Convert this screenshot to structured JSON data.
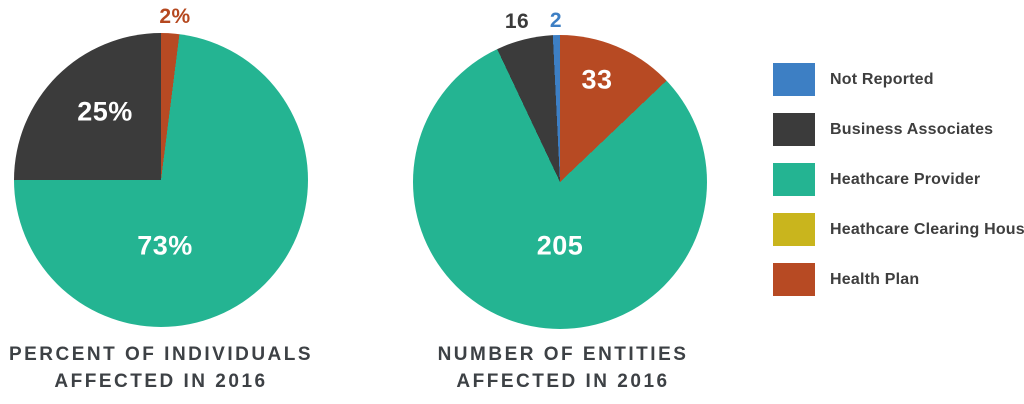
{
  "page": {
    "background": "#ffffff"
  },
  "colors": {
    "not_reported": "#3d7fc4",
    "business_associates": "#3b3b3b",
    "healthcare_provider": "#24b492",
    "healthcare_clearing_house": "#c9b51d",
    "health_plan": "#b74a23",
    "title_text": "#3d4145",
    "legend_text": "#3e3e3e",
    "inside_label_text": "#ffffff"
  },
  "legend": {
    "items": [
      {
        "label": "Not Reported",
        "color": "#3d7fc4"
      },
      {
        "label": "Business Associates",
        "color": "#3b3b3b"
      },
      {
        "label": "Heathcare Provider",
        "color": "#24b492"
      },
      {
        "label": "Heathcare Clearing House",
        "color": "#c9b51d"
      },
      {
        "label": "Health Plan",
        "color": "#b74a23"
      }
    ]
  },
  "chart_data": [
    {
      "type": "pie",
      "title": "PERCENT OF INDIVIDUALS AFFECTED IN 2016",
      "title_lines": [
        "PERCENT OF INDIVIDUALS",
        "AFFECTED IN 2016"
      ],
      "unit": "percent",
      "total": 100,
      "start_angle_deg": 0,
      "direction": "clockwise",
      "legend_position": "right",
      "slices": [
        {
          "name": "Health Plan",
          "value": 2,
          "display": "2%",
          "color": "#b74a23",
          "label_color": "#b5481f",
          "label_position": "outside-top"
        },
        {
          "name": "Heathcare Provider",
          "value": 73,
          "display": "73%",
          "color": "#24b492",
          "label_color": "#ffffff",
          "label_position": "inside"
        },
        {
          "name": "Business Associates",
          "value": 25,
          "display": "25%",
          "color": "#3b3b3b",
          "label_color": "#ffffff",
          "label_position": "inside"
        }
      ]
    },
    {
      "type": "pie",
      "title": "NUMBER OF ENTITIES AFFECTED IN 2016",
      "title_lines": [
        "NUMBER OF ENTITIES",
        "AFFECTED IN 2016"
      ],
      "unit": "count",
      "total": 256,
      "start_angle_deg": 0,
      "direction": "clockwise",
      "legend_position": "right",
      "slices": [
        {
          "name": "Health Plan",
          "value": 33,
          "display": "33",
          "color": "#b74a23",
          "label_color": "#ffffff",
          "label_position": "inside"
        },
        {
          "name": "Heathcare Provider",
          "value": 205,
          "display": "205",
          "color": "#24b492",
          "label_color": "#ffffff",
          "label_position": "inside"
        },
        {
          "name": "Business Associates",
          "value": 16,
          "display": "16",
          "color": "#3b3b3b",
          "label_color": "#3b3b3b",
          "label_position": "outside-top"
        },
        {
          "name": "Not Reported",
          "value": 2,
          "display": "2",
          "color": "#3d7fc4",
          "label_color": "#3d7fc4",
          "label_position": "outside-top"
        }
      ]
    }
  ]
}
